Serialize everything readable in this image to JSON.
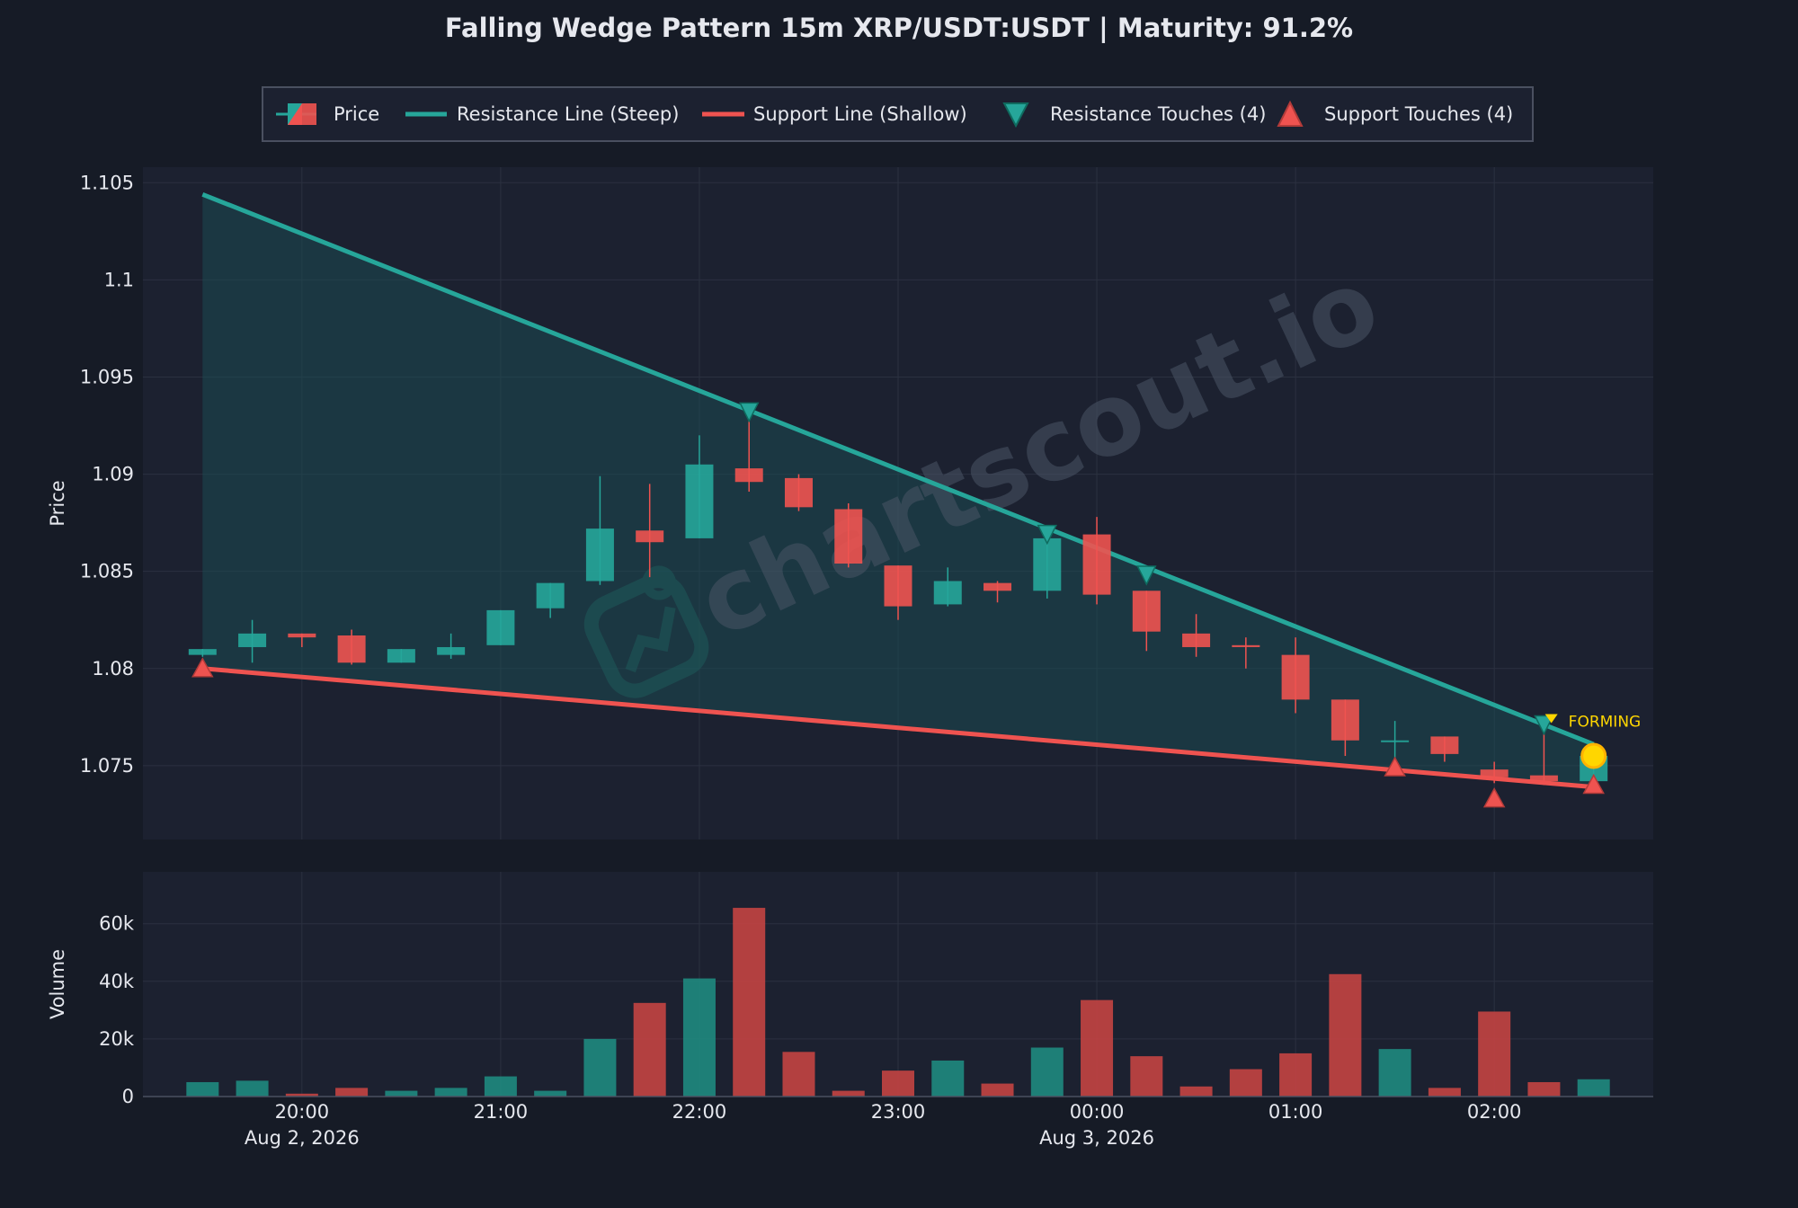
{
  "colors": {
    "background": "#161b26",
    "panel": "#1c2130",
    "grid": "#2b3140",
    "text": "#e6e8ee",
    "up": "#26a69a",
    "down": "#ef5350",
    "resistance": "#26a69a",
    "support": "#ef5350",
    "wedge_fill": "#1c4a52",
    "forming": "#ffd600",
    "watermark": "#4a5566"
  },
  "chart_data": {
    "type": "candlestick",
    "title": "Falling Wedge Pattern 15m XRP/USDT:USDT | Maturity: 91.2%",
    "watermark": "chartscout.io",
    "legend": {
      "placement": "top-center",
      "entries": [
        {
          "key": "price",
          "label": "Price"
        },
        {
          "key": "resistance",
          "label": "Resistance Line (Steep)"
        },
        {
          "key": "support",
          "label": "Support Line (Shallow)"
        },
        {
          "key": "res_touch",
          "label": "Resistance Touches (4)"
        },
        {
          "key": "sup_touch",
          "label": "Support Touches (4)"
        }
      ]
    },
    "price_panel": {
      "ylabel": "Price",
      "ylim": [
        1.0712,
        1.1058
      ],
      "yticks": [
        {
          "value": 1.075,
          "label": "1.075"
        },
        {
          "value": 1.08,
          "label": "1.08"
        },
        {
          "value": 1.085,
          "label": "1.085"
        },
        {
          "value": 1.09,
          "label": "1.09"
        },
        {
          "value": 1.095,
          "label": "1.095"
        },
        {
          "value": 1.1,
          "label": "1.1"
        },
        {
          "value": 1.105,
          "label": "1.105"
        }
      ],
      "grid": true
    },
    "volume_panel": {
      "ylabel": "Volume",
      "ylim": [
        0,
        78000
      ],
      "yticks": [
        {
          "value": 0,
          "label": "0"
        },
        {
          "value": 20000,
          "label": "20k"
        },
        {
          "value": 40000,
          "label": "40k"
        },
        {
          "value": 60000,
          "label": "60k"
        }
      ],
      "grid": true
    },
    "xlim": [
      "2026-08-02 19:12",
      "2026-08-03 02:48"
    ],
    "xticks": [
      {
        "time": "2026-08-02 20:00",
        "label": "20:00",
        "sublabel": "Aug 2, 2026"
      },
      {
        "time": "2026-08-02 21:00",
        "label": "21:00",
        "sublabel": ""
      },
      {
        "time": "2026-08-02 22:00",
        "label": "22:00",
        "sublabel": ""
      },
      {
        "time": "2026-08-02 23:00",
        "label": "23:00",
        "sublabel": ""
      },
      {
        "time": "2026-08-03 00:00",
        "label": "00:00",
        "sublabel": "Aug 3, 2026"
      },
      {
        "time": "2026-08-03 01:00",
        "label": "01:00",
        "sublabel": ""
      },
      {
        "time": "2026-08-03 02:00",
        "label": "02:00",
        "sublabel": ""
      }
    ],
    "candles": [
      {
        "time": "2026-08-02 19:30",
        "open": 1.0807,
        "high": 1.081,
        "low": 1.0806,
        "close": 1.081,
        "volume": 5000
      },
      {
        "time": "2026-08-02 19:45",
        "open": 1.0811,
        "high": 1.0825,
        "low": 1.0803,
        "close": 1.0818,
        "volume": 5500
      },
      {
        "time": "2026-08-02 20:00",
        "open": 1.0818,
        "high": 1.0818,
        "low": 1.0811,
        "close": 1.0816,
        "volume": 1000
      },
      {
        "time": "2026-08-02 20:15",
        "open": 1.0817,
        "high": 1.082,
        "low": 1.0802,
        "close": 1.0803,
        "volume": 3000
      },
      {
        "time": "2026-08-02 20:30",
        "open": 1.0803,
        "high": 1.081,
        "low": 1.0803,
        "close": 1.081,
        "volume": 2000
      },
      {
        "time": "2026-08-02 20:45",
        "open": 1.0807,
        "high": 1.0818,
        "low": 1.0805,
        "close": 1.0811,
        "volume": 3000
      },
      {
        "time": "2026-08-02 21:00",
        "open": 1.0812,
        "high": 1.083,
        "low": 1.0812,
        "close": 1.083,
        "volume": 7000
      },
      {
        "time": "2026-08-02 21:15",
        "open": 1.0831,
        "high": 1.0844,
        "low": 1.0826,
        "close": 1.0844,
        "volume": 2000
      },
      {
        "time": "2026-08-02 21:30",
        "open": 1.0845,
        "high": 1.0899,
        "low": 1.0843,
        "close": 1.0872,
        "volume": 20000
      },
      {
        "time": "2026-08-02 21:45",
        "open": 1.0871,
        "high": 1.0895,
        "low": 1.0847,
        "close": 1.0865,
        "volume": 32500
      },
      {
        "time": "2026-08-02 22:00",
        "open": 1.0867,
        "high": 1.092,
        "low": 1.0867,
        "close": 1.0905,
        "volume": 41000
      },
      {
        "time": "2026-08-02 22:15",
        "open": 1.0903,
        "high": 1.0931,
        "low": 1.0891,
        "close": 1.0896,
        "volume": 65500
      },
      {
        "time": "2026-08-02 22:30",
        "open": 1.0898,
        "high": 1.09,
        "low": 1.0881,
        "close": 1.0883,
        "volume": 15500
      },
      {
        "time": "2026-08-02 22:45",
        "open": 1.0882,
        "high": 1.0885,
        "low": 1.0852,
        "close": 1.0854,
        "volume": 2000
      },
      {
        "time": "2026-08-02 23:00",
        "open": 1.0853,
        "high": 1.0853,
        "low": 1.0825,
        "close": 1.0832,
        "volume": 9000
      },
      {
        "time": "2026-08-02 23:15",
        "open": 1.0833,
        "high": 1.0852,
        "low": 1.0832,
        "close": 1.0845,
        "volume": 12500
      },
      {
        "time": "2026-08-02 23:30",
        "open": 1.0844,
        "high": 1.0845,
        "low": 1.0834,
        "close": 1.084,
        "volume": 4500
      },
      {
        "time": "2026-08-02 23:45",
        "open": 1.084,
        "high": 1.0869,
        "low": 1.0836,
        "close": 1.0867,
        "volume": 17000
      },
      {
        "time": "2026-08-03 00:00",
        "open": 1.0869,
        "high": 1.0878,
        "low": 1.0833,
        "close": 1.0838,
        "volume": 33500
      },
      {
        "time": "2026-08-03 00:15",
        "open": 1.084,
        "high": 1.084,
        "low": 1.0809,
        "close": 1.0819,
        "volume": 14000
      },
      {
        "time": "2026-08-03 00:30",
        "open": 1.0818,
        "high": 1.0828,
        "low": 1.0806,
        "close": 1.0811,
        "volume": 3500
      },
      {
        "time": "2026-08-03 00:45",
        "open": 1.0812,
        "high": 1.0816,
        "low": 1.08,
        "close": 1.0811,
        "volume": 9500
      },
      {
        "time": "2026-08-03 01:00",
        "open": 1.0807,
        "high": 1.0816,
        "low": 1.0777,
        "close": 1.0784,
        "volume": 15000
      },
      {
        "time": "2026-08-03 01:15",
        "open": 1.0784,
        "high": 1.0784,
        "low": 1.0755,
        "close": 1.0763,
        "volume": 42500
      },
      {
        "time": "2026-08-03 01:30",
        "open": 1.0763,
        "high": 1.0773,
        "low": 1.0752,
        "close": 1.0763,
        "volume": 16500
      },
      {
        "time": "2026-08-03 01:45",
        "open": 1.0765,
        "high": 1.0765,
        "low": 1.0752,
        "close": 1.0756,
        "volume": 3000
      },
      {
        "time": "2026-08-03 02:00",
        "open": 1.0748,
        "high": 1.0752,
        "low": 1.0741,
        "close": 1.0744,
        "volume": 29500
      },
      {
        "time": "2026-08-03 02:15",
        "open": 1.0745,
        "high": 1.0772,
        "low": 1.074,
        "close": 1.0742,
        "volume": 5000
      },
      {
        "time": "2026-08-03 02:30",
        "open": 1.0742,
        "high": 1.0756,
        "low": 1.0741,
        "close": 1.0755,
        "volume": 6000
      }
    ],
    "resistance_line": {
      "start": {
        "time": "2026-08-02 19:30",
        "price": 1.1044
      },
      "end": {
        "time": "2026-08-03 02:30",
        "price": 1.0761
      }
    },
    "support_line": {
      "start": {
        "time": "2026-08-02 19:30",
        "price": 1.08
      },
      "end": {
        "time": "2026-08-03 02:30",
        "price": 1.0739
      }
    },
    "resistance_touches": [
      {
        "time": "2026-08-02 22:15",
        "price": 1.0932
      },
      {
        "time": "2026-08-02 23:45",
        "price": 1.0869
      },
      {
        "time": "2026-08-03 00:15",
        "price": 1.0848
      },
      {
        "time": "2026-08-03 02:15",
        "price": 1.0771
      }
    ],
    "support_touches": [
      {
        "time": "2026-08-02 19:30",
        "price": 1.08
      },
      {
        "time": "2026-08-03 01:30",
        "price": 1.0749
      },
      {
        "time": "2026-08-03 02:00",
        "price": 1.0733
      },
      {
        "time": "2026-08-03 02:30",
        "price": 1.074
      }
    ],
    "forming": {
      "label": "FORMING",
      "time": "2026-08-03 02:30",
      "price": 1.0755
    }
  }
}
